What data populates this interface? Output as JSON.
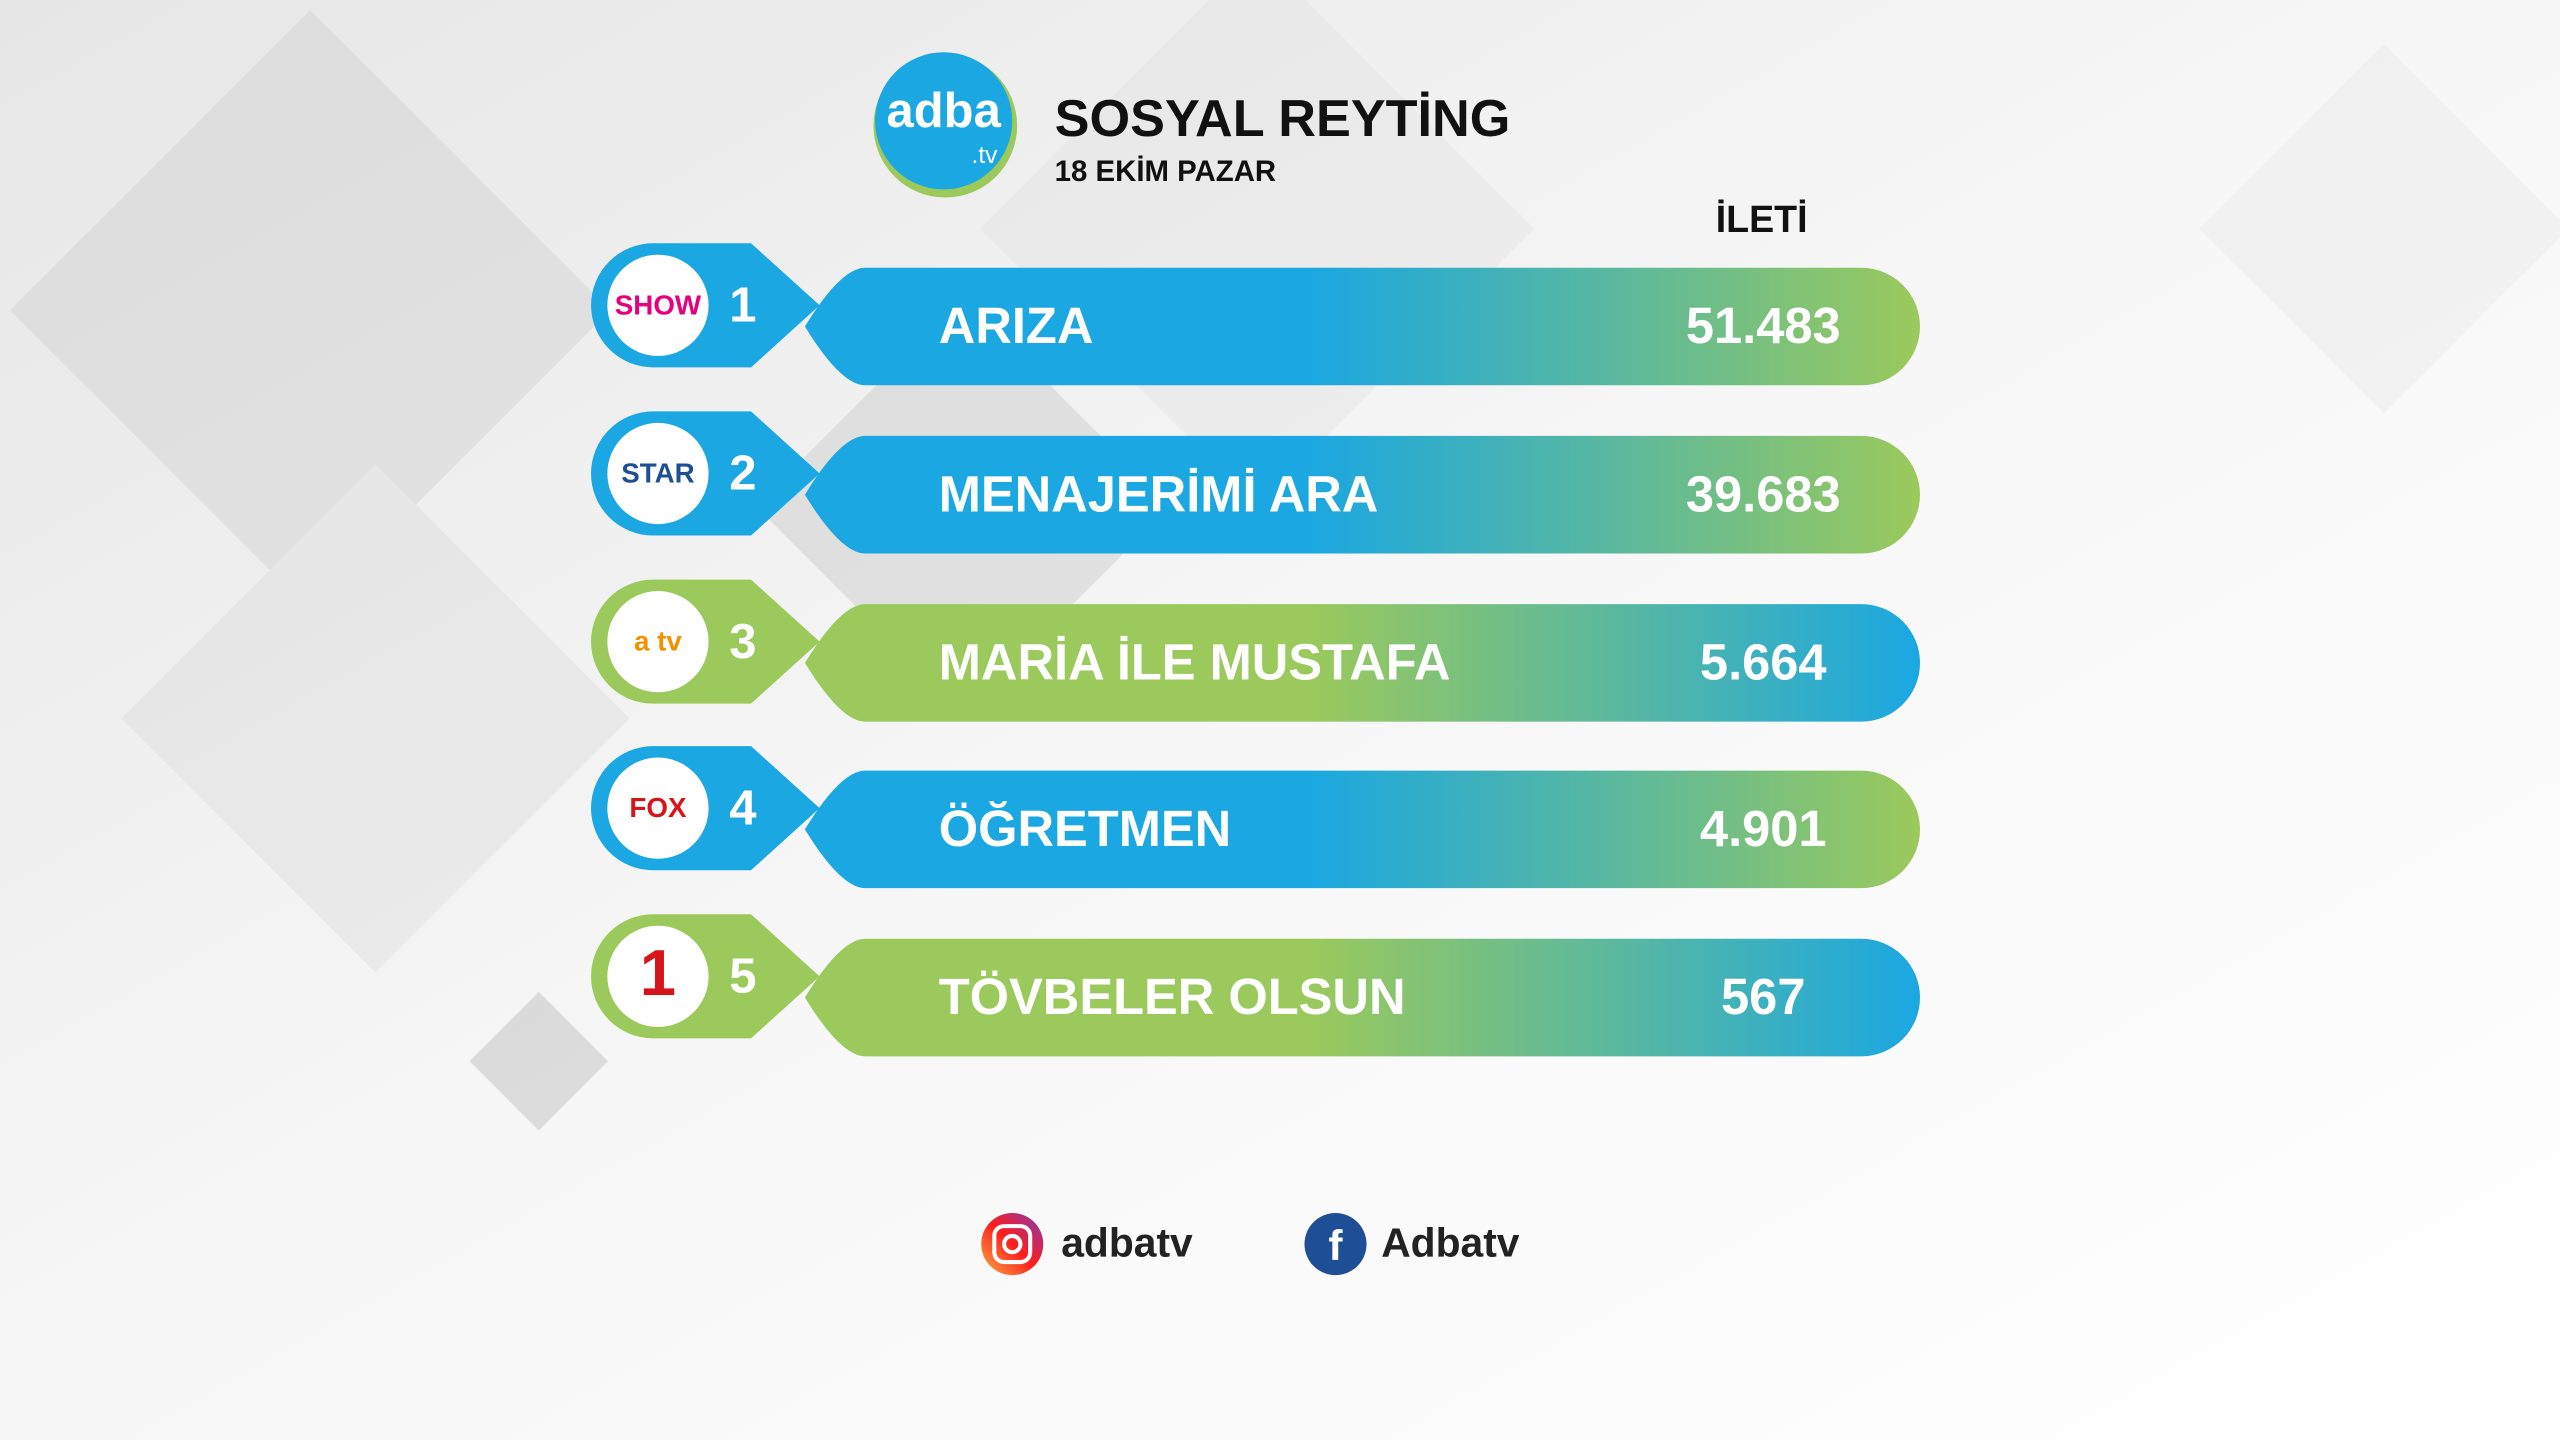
{
  "header": {
    "logo_main": "adba",
    "logo_sub": ".tv",
    "title": "SOSYAL REYTİNG",
    "date": "18 EKİM PAZAR",
    "column_header": "İLETİ"
  },
  "rows": [
    {
      "rank": "1",
      "channel": "SHOW",
      "show": "ARIZA",
      "value": "51.483"
    },
    {
      "rank": "2",
      "channel": "STAR",
      "show": "MENAJERİMİ ARA",
      "value": "39.683"
    },
    {
      "rank": "3",
      "channel": "a tv",
      "show": "MARİA İLE MUSTAFA",
      "value": "5.664"
    },
    {
      "rank": "4",
      "channel": "FOX",
      "show": "ÖĞRETMEN",
      "value": "4.901"
    },
    {
      "rank": "5",
      "channel": "1",
      "show": "TÖVBELER OLSUN",
      "value": "567"
    }
  ],
  "footer": {
    "instagram": "adbatv",
    "facebook": "Adbatv"
  }
}
